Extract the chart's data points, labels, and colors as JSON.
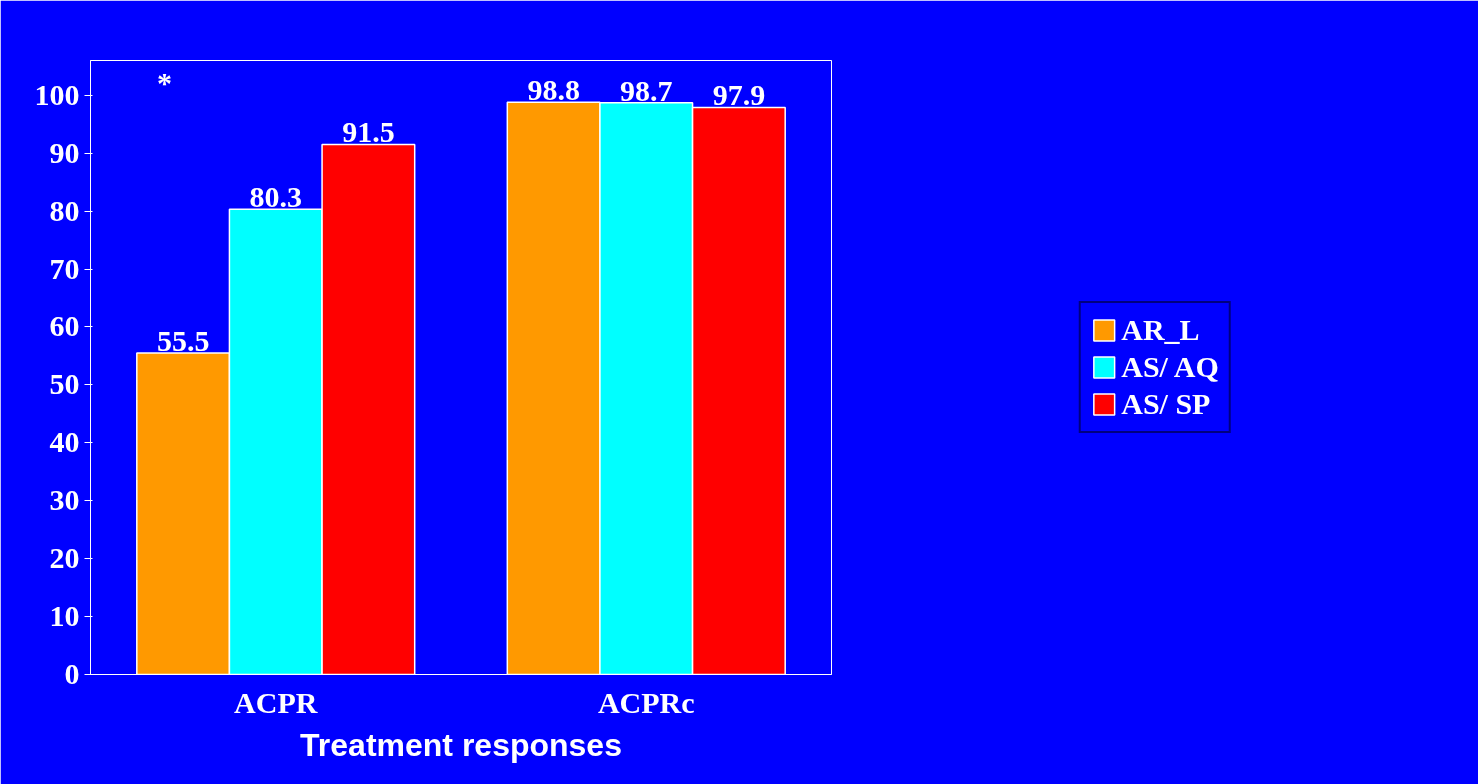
{
  "chart_data": {
    "type": "bar",
    "xlabel": "Treatment responses",
    "categories": [
      "ACPR",
      "ACPRc"
    ],
    "series": [
      {
        "name": "AR_L",
        "color": "#ff9900",
        "values": [
          55.5,
          98.8
        ]
      },
      {
        "name": "AS/ AQ",
        "color": "#00ffff",
        "values": [
          80.3,
          98.7
        ]
      },
      {
        "name": "AS/ SP",
        "color": "#ff0000",
        "values": [
          91.5,
          97.9
        ]
      }
    ],
    "ylim": [
      0,
      106
    ],
    "yticks": [
      0,
      10,
      20,
      30,
      40,
      50,
      60,
      70,
      80,
      90,
      100
    ],
    "data_labels": true,
    "legend": "right",
    "grid": false,
    "annotations": [
      "*"
    ]
  }
}
